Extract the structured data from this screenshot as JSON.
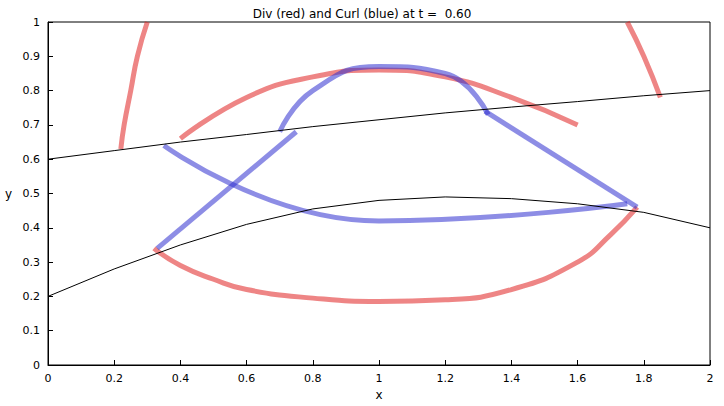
{
  "chart_data": {
    "type": "line",
    "title": "Div (red) and Curl (blue) at t =  0.60",
    "x_label": "x",
    "y_label": "y",
    "xlim": [
      0,
      2
    ],
    "ylim": [
      0,
      1
    ],
    "xticks": [
      0,
      0.2,
      0.4,
      0.6,
      0.8,
      1,
      1.2,
      1.4,
      1.6,
      1.8,
      2
    ],
    "yticks": [
      0,
      0.1,
      0.2,
      0.3,
      0.4,
      0.5,
      0.6,
      0.7,
      0.8,
      0.9,
      1
    ],
    "grid": false,
    "series": [
      {
        "color": "#e02020",
        "line_style": "wave",
        "x": [
          0.32,
          0.4,
          0.5,
          0.6,
          0.8,
          1.0,
          1.2,
          1.4,
          1.6,
          1.7,
          1.78
        ],
        "values": [
          0.34,
          0.29,
          0.25,
          0.22,
          0.195,
          0.185,
          0.19,
          0.22,
          0.3,
          0.38,
          0.46
        ]
      },
      {
        "color": "#e02020",
        "line_style": "wave",
        "x": [
          0.3,
          0.27,
          0.25,
          0.23,
          0.22
        ],
        "values": [
          1.0,
          0.9,
          0.8,
          0.7,
          0.63
        ]
      },
      {
        "color": "#e02020",
        "line_style": "wave",
        "x": [
          1.75,
          1.8,
          1.85
        ],
        "values": [
          1.0,
          0.9,
          0.78
        ]
      },
      {
        "color": "#e02020",
        "line_style": "wave",
        "x": [
          0.4,
          0.6,
          0.8,
          1.0,
          1.2,
          1.4,
          1.6
        ],
        "values": [
          0.66,
          0.78,
          0.84,
          0.86,
          0.84,
          0.78,
          0.7
        ]
      },
      {
        "color": "#3030d0",
        "line_style": "wave",
        "x": [
          0.7,
          0.8,
          1.0,
          1.2,
          1.33
        ],
        "values": [
          0.68,
          0.8,
          0.87,
          0.85,
          0.73
        ]
      },
      {
        "color": "#3030d0",
        "line_style": "wave",
        "x": [
          0.33,
          0.75
        ],
        "values": [
          0.34,
          0.68
        ]
      },
      {
        "color": "#3030d0",
        "line_style": "wave",
        "x": [
          1.78,
          1.32
        ],
        "values": [
          0.46,
          0.74
        ]
      },
      {
        "color": "#3030d0",
        "line_style": "wave",
        "x": [
          0.35,
          1.0,
          1.75
        ],
        "values": [
          0.64,
          0.42,
          0.47
        ]
      },
      {
        "color": "#000000",
        "line_style": "solid",
        "x": [
          0,
          0.2,
          0.4,
          0.6,
          0.8,
          1.0,
          1.2,
          1.4,
          1.6,
          1.8,
          2
        ],
        "values": [
          0.6,
          0.625,
          0.65,
          0.672,
          0.695,
          0.715,
          0.735,
          0.752,
          0.768,
          0.785,
          0.8
        ]
      },
      {
        "color": "#000000",
        "line_style": "solid",
        "x": [
          0,
          0.2,
          0.4,
          0.6,
          0.8,
          1.0,
          1.2,
          1.4,
          1.6,
          1.8,
          2
        ],
        "values": [
          0.2,
          0.28,
          0.35,
          0.41,
          0.455,
          0.48,
          0.49,
          0.485,
          0.47,
          0.445,
          0.4
        ]
      }
    ]
  }
}
